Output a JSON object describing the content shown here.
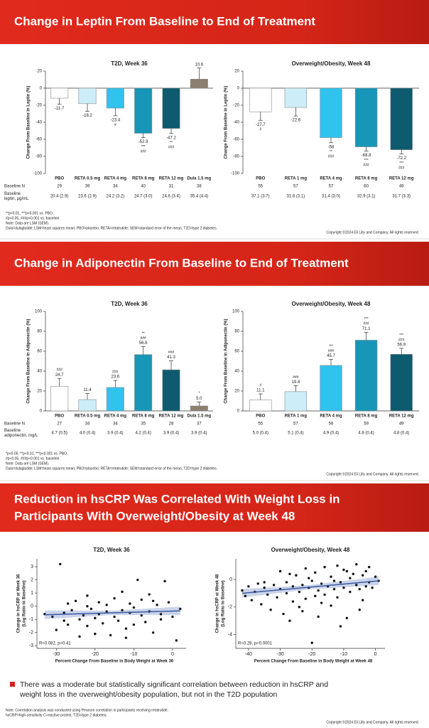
{
  "sections": [
    {
      "title": "Change in Leptin From Baseline to End of Treatment",
      "row_labels": [
        [
          "Baseline N"
        ],
        [
          "Baseline",
          "leptin, µg/mL"
        ]
      ],
      "footnotes": [
        "**p<0.01, ***p<0.001 vs. PBO.",
        "#p<0.05, ###p<0.001 vs. baseline.",
        "Note: Data are LSM (SEM).",
        "Dula=dulaglutide; LSM=least squares mean; PBO=placebo; RETA=retatrutide; SEM=standard error of the mean; T2D=type 2 diabetes."
      ],
      "copyright": "Copyright ©2024 Eli Lilly and Company. All rights reserved."
    },
    {
      "title": "Change in Adiponectin From Baseline to End of Treatment",
      "row_labels": [
        [
          "Baseline N"
        ],
        [
          "Baseline",
          "adiponectin, mg/L"
        ]
      ],
      "footnotes": [
        "*p<0.05, **p<0.01, ***p<0.001 vs. PBO.",
        "#p<0.05, ###p<0.001 vs. baseline.",
        "Note: Data are LSM (SEM).",
        "Dula=dulaglutide; LSM=least squares mean; PBO=placebo; RETA=retatrutide; SEM=standard error of the mean; T2D=type 2 diabetes."
      ],
      "copyright": "Copyright ©2024 Eli Lilly and Company. All rights reserved."
    },
    {
      "title_lines": [
        "Reduction in hsCRP Was Correlated With Weight Loss in",
        "Participants With Overweight/Obesity at Week 48"
      ],
      "bullet": [
        "There was a moderate but statistically significant correlation between reduction in hsCRP and",
        "weight loss in the overweight/obesity population, but not in the T2D population"
      ],
      "footnotes": [
        "Note: Correlation analysis was conducted using Pearson correlation in participants receiving retatrutide.",
        "hsCRP=high-sensitivity C-reactive protein; T2D=type 2 diabetes."
      ],
      "copyright": "Copyright ©2024 Eli Lilly and Company. All rights reserved."
    }
  ],
  "chart_data": [
    {
      "type": "bar",
      "title": "T2D, Week 36",
      "ylabel": "Change From Baseline in Leptin (%)",
      "ylim": [
        -100,
        20
      ],
      "yticks": [
        -100,
        -80,
        -60,
        -40,
        -20,
        0,
        20
      ],
      "categories": [
        "PBO",
        "RETA 0.5 mg",
        "RETA 4 mg",
        "RETA 8 mg",
        "RETA 12 mg",
        "Dula 1.5 mg"
      ],
      "values": [
        -11.7,
        -18.2,
        -23.4,
        -52.9,
        -47.2,
        10.6
      ],
      "errors": [
        7,
        9,
        9,
        5,
        6,
        13
      ],
      "colors": [
        "#ffffff",
        "#cdeef9",
        "#2fc3ee",
        "#1796b8",
        "#0e5a6f",
        "#8a7f70"
      ],
      "annotations": [
        [],
        [],
        [
          "#"
        ],
        [
          "***",
          "###"
        ],
        [
          "**",
          "###"
        ],
        []
      ],
      "baseline_n": [
        29,
        39,
        34,
        40,
        31,
        38
      ],
      "baseline_values": [
        "20.4 (2.9)",
        "23.6 (2.9)",
        "24.2 (3.2)",
        "24.7 (3.0)",
        "24.6 (3.4)",
        "35.4 (4.4)"
      ]
    },
    {
      "type": "bar",
      "title": "Overweight/Obesity, Week 48",
      "ylabel": "Change From Baseline in Leptin (%)",
      "ylim": [
        -100,
        20
      ],
      "yticks": [
        -100,
        -80,
        -60,
        -40,
        -20,
        0,
        20
      ],
      "categories": [
        "PBO",
        "RETA 1 mg",
        "RETA 4 mg",
        "RETA 8 mg",
        "RETA 12 mg"
      ],
      "values": [
        -27.7,
        -22.6,
        -58.0,
        -68.8,
        -72.2
      ],
      "errors": [
        10,
        10,
        6,
        5,
        5
      ],
      "colors": [
        "#ffffff",
        "#cdeef9",
        "#2fc3ee",
        "#1796b8",
        "#0e5a6f"
      ],
      "annotations": [
        [
          "#"
        ],
        [],
        [
          "**",
          "###"
        ],
        [
          "***",
          "###"
        ],
        [
          "***",
          "###"
        ]
      ],
      "baseline_n": [
        55,
        57,
        57,
        60,
        49
      ],
      "baseline_values": [
        "37.1 (3.7)",
        "31.8 (3.1)",
        "31.4 (3.0)",
        "32.9 (3.1)",
        "31.7 (3.3)"
      ]
    },
    {
      "type": "bar",
      "title": "T2D, Week 36",
      "ylabel": "Change From Baseline in Adiponectin (%)",
      "ylim": [
        0,
        100
      ],
      "yticks": [
        0,
        20,
        40,
        60,
        80,
        100
      ],
      "categories": [
        "PBO",
        "RETA 0.5 mg",
        "RETA 4 mg",
        "RETA 8 mg",
        "RETA 12 mg",
        "Dula 1.5 mg"
      ],
      "values": [
        24.7,
        11.4,
        23.6,
        56.6,
        41.3,
        5.0
      ],
      "value_labels": [
        "24.7",
        "11.4",
        "23.6",
        "56.6",
        "41.3",
        "5.0"
      ],
      "errors": [
        8,
        6,
        7,
        8,
        9,
        4
      ],
      "colors": [
        "#ffffff",
        "#cdeef9",
        "#2fc3ee",
        "#1796b8",
        "#0e5a6f",
        "#8a7f70"
      ],
      "annotations": [
        [
          "###"
        ],
        [],
        [
          "###"
        ],
        [
          "**",
          "###"
        ],
        [
          "###"
        ],
        [
          "*"
        ]
      ],
      "baseline_n": [
        27,
        34,
        34,
        35,
        28,
        37
      ],
      "baseline_values": [
        "4.7 (0.5)",
        "4.0 (0.4)",
        "3.9 (0.4)",
        "4.2 (0.4)",
        "3.9 (0.4)",
        "3.9 (0.4)"
      ]
    },
    {
      "type": "bar",
      "title": "Overweight/Obesity, Week 48",
      "ylabel": "Change From Baseline in Adiponectin (%)",
      "ylim": [
        0,
        100
      ],
      "yticks": [
        0,
        20,
        40,
        60,
        80,
        100
      ],
      "categories": [
        "PBO",
        "RETA 1 mg",
        "RETA 4 mg",
        "RETA 8 mg",
        "RETA 12 mg"
      ],
      "values": [
        11.1,
        19.4,
        45.7,
        71.1,
        56.9
      ],
      "errors": [
        6,
        6,
        6,
        8,
        6
      ],
      "colors": [
        "#ffffff",
        "#cdeef9",
        "#2fc3ee",
        "#1796b8",
        "#0e5a6f"
      ],
      "annotations": [
        [
          "#"
        ],
        [
          "###"
        ],
        [
          "***",
          "###"
        ],
        [
          "***",
          "###"
        ],
        [
          "***",
          "###"
        ]
      ],
      "baseline_n": [
        55,
        57,
        56,
        59,
        49
      ],
      "baseline_values": [
        "5.0 (0.4)",
        "5.1 (0.4)",
        "4.9 (0.4)",
        "4.8 (0.4)",
        "4.8 (0.4)"
      ]
    },
    {
      "type": "scatter",
      "title": "T2D, Week 36",
      "xlabel": "Percent Change From Baseline in Body Weight at Week 36",
      "ylabel": [
        "Change in hsCRP at Week 36",
        "(Log Ratio to Baseline)"
      ],
      "stats": "R=0.082, p=0.41",
      "xlim": [
        -35,
        3.5
      ],
      "ylim": [
        -3.2,
        3.6
      ],
      "xticks": [
        -30,
        -20,
        -10,
        0
      ],
      "yticks": [
        -3,
        -2,
        -1,
        0,
        1,
        2,
        3
      ],
      "color": "#111111",
      "fit_color": "#3a5aa0",
      "x": [
        -33,
        -31,
        -30,
        -29,
        -28,
        -27,
        -27,
        -26,
        -25,
        -24,
        -24,
        -23,
        -22,
        -22,
        -21,
        -20,
        -20,
        -19,
        -19,
        -18,
        -17,
        -17,
        -16,
        -15,
        -15,
        -14,
        -13,
        -13,
        -12,
        -11,
        -11,
        -10,
        -10,
        -9,
        -8,
        -8,
        -7,
        -6,
        -6,
        -5,
        -4,
        -3,
        -3,
        -2,
        -1,
        0,
        1,
        2,
        -28,
        -22,
        -12,
        -5
      ],
      "y": [
        -0.6,
        -0.8,
        -1.8,
        3.2,
        -0.5,
        0.2,
        -1.4,
        -0.3,
        0.4,
        -1,
        -2.3,
        -0.7,
        0.8,
        -1.5,
        -0.2,
        -0.9,
        -2.1,
        0.3,
        -0.6,
        -1.3,
        0.1,
        -0.4,
        -2.2,
        -0.8,
        0.6,
        -1.1,
        -0.3,
        1.1,
        -1.7,
        -0.5,
        0.2,
        -1.4,
        -0.1,
        2.0,
        -0.7,
        0.5,
        -1.2,
        -0.4,
        0.9,
        -2.0,
        0.1,
        -0.6,
        -1.0,
        1.9,
        0.3,
        -0.8,
        -2.6,
        -0.2,
        -1.1,
        0.0,
        -2.4,
        0.4
      ],
      "fit": {
        "x": [
          -33,
          2
        ],
        "y": [
          -0.65,
          -0.35
        ]
      }
    },
    {
      "type": "scatter",
      "title": "Overweight/Obesity, Week 48",
      "xlabel": "Percent Change From Baseline in Body Weight at Week 48",
      "ylabel": [
        "Change in hsCRP at Week 48",
        "(Log Ratio to Baseline)"
      ],
      "stats": "R=0.28, p=0.0001",
      "xlim": [
        -44,
        3
      ],
      "ylim": [
        -5,
        1.5
      ],
      "xticks": [
        -40,
        -30,
        -20,
        -10,
        0
      ],
      "yticks": [
        -4,
        -2,
        0
      ],
      "color": "#111111",
      "fit_color": "#3a5aa0",
      "x": [
        -42,
        -41,
        -40,
        -39,
        -38,
        -37,
        -36,
        -35,
        -34,
        -33,
        -32,
        -31,
        -30,
        -30,
        -29,
        -28,
        -28,
        -27,
        -26,
        -26,
        -25,
        -24,
        -24,
        -23,
        -22,
        -22,
        -21,
        -20,
        -20,
        -19,
        -19,
        -18,
        -18,
        -17,
        -16,
        -16,
        -15,
        -14,
        -14,
        -13,
        -12,
        -12,
        -11,
        -10,
        -10,
        -9,
        -8,
        -8,
        -7,
        -6,
        -6,
        -5,
        -4,
        -4,
        -3,
        -2,
        -2,
        -1,
        0,
        1,
        -35,
        -27,
        -23,
        -17,
        -13,
        -9,
        -5,
        -3,
        -11,
        -21
      ],
      "y": [
        -0.8,
        -1.2,
        -0.5,
        -1.5,
        -0.9,
        -0.3,
        -1.8,
        -0.6,
        -1.1,
        -2.2,
        -0.4,
        -1.3,
        -0.7,
        0.6,
        -2.5,
        -0.2,
        -1.0,
        -3.0,
        -0.5,
        -1.6,
        0.3,
        -0.9,
        -2.0,
        -0.4,
        0.8,
        -1.4,
        -0.6,
        -4.6,
        -0.1,
        -1.2,
        0.5,
        -0.8,
        -2.7,
        -0.3,
        0.9,
        -1.1,
        -0.5,
        -1.9,
        0.2,
        -0.7,
        1.0,
        -1.3,
        -0.2,
        -0.6,
        0.7,
        -2.8,
        0.1,
        -0.9,
        0.4,
        -0.4,
        1.1,
        -0.7,
        0.3,
        -1.5,
        0.6,
        -0.2,
        0.9,
        -0.6,
        0.2,
        -0.1,
        -0.2,
        0.4,
        -2.3,
        -1.7,
        -0.1,
        0.6,
        -2.2,
        -0.5,
        -3.4,
        0.1
      ],
      "fit": {
        "x": [
          -42,
          1
        ],
        "y": [
          -1.0,
          -0.1
        ]
      }
    }
  ]
}
